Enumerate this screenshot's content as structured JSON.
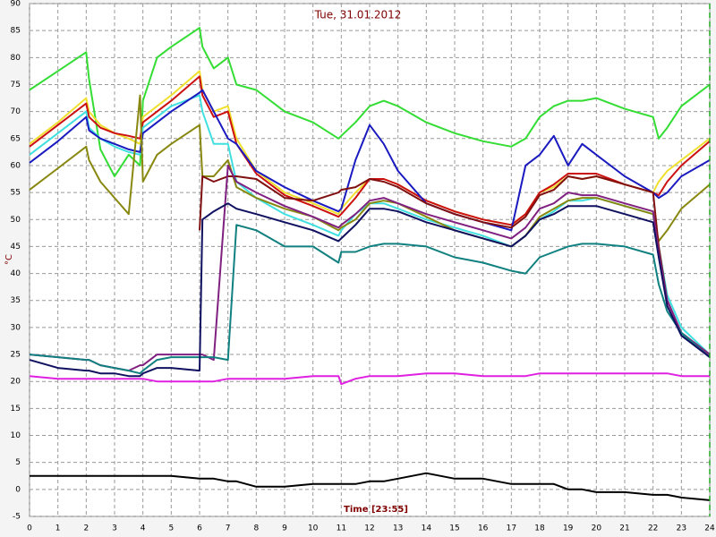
{
  "chart_data": {
    "type": "line",
    "title": "Tue, 31.01.2012",
    "x_label": "Time [23:55]",
    "y_label": "°C",
    "xlim": [
      0,
      24
    ],
    "ylim": [
      -5,
      90
    ],
    "xticks": [
      0,
      1,
      2,
      3,
      4,
      5,
      6,
      7,
      8,
      9,
      10,
      11,
      12,
      13,
      14,
      15,
      16,
      17,
      18,
      19,
      20,
      21,
      22,
      23,
      24
    ],
    "yticks": [
      -5,
      0,
      5,
      10,
      15,
      20,
      25,
      30,
      35,
      40,
      45,
      50,
      55,
      60,
      65,
      70,
      75,
      80,
      85,
      90
    ],
    "grid": true,
    "x": [
      0,
      1,
      2,
      2.1,
      2.5,
      3,
      3.5,
      3.9,
      4,
      4.5,
      5,
      6,
      6.1,
      6.5,
      7,
      7.3,
      8,
      9,
      10,
      10.9,
      11,
      11.5,
      12,
      12.5,
      13,
      14,
      15,
      16,
      17,
      17.5,
      18,
      18.5,
      19,
      19.5,
      20,
      21,
      22,
      22.2,
      22.5,
      23,
      24
    ],
    "series": [
      {
        "color": "#33dd33",
        "values": [
          74,
          77.5,
          81,
          76,
          63,
          58,
          62,
          60,
          72,
          80,
          82,
          85.5,
          82,
          78,
          80,
          75,
          74,
          70,
          68,
          65,
          65.5,
          68,
          71,
          72,
          71,
          68,
          66,
          64.5,
          63.5,
          65,
          69,
          71,
          72,
          72,
          72.5,
          70.5,
          69,
          65,
          67,
          71,
          75
        ]
      },
      {
        "color": "#f0e030",
        "values": [
          64,
          68,
          72.5,
          70,
          67.5,
          66,
          65,
          64,
          69,
          71,
          73,
          77.5,
          74,
          70,
          71,
          65,
          59,
          55,
          53,
          51,
          52,
          55,
          57.5,
          57.5,
          56.5,
          53.5,
          51.5,
          50,
          49,
          51,
          55,
          56,
          58,
          57.5,
          58,
          56.5,
          55,
          57,
          59,
          61,
          65
        ]
      },
      {
        "color": "#cc1010",
        "values": [
          63.5,
          67.5,
          71.5,
          69,
          67,
          66,
          65.5,
          65,
          68,
          70,
          72,
          76.5,
          73,
          69,
          70,
          64,
          58.5,
          54.5,
          52.5,
          50.5,
          51,
          54,
          57.5,
          57.5,
          56.5,
          53.5,
          51.5,
          50,
          49,
          51,
          55,
          56.5,
          58.5,
          58.5,
          58.5,
          56.5,
          55,
          54.5,
          57,
          60,
          64.5
        ]
      },
      {
        "color": "#40e0e0",
        "values": [
          62,
          66,
          70,
          67,
          65,
          63.5,
          62.5,
          62,
          67,
          69,
          71,
          73,
          70,
          64,
          64,
          57,
          54,
          51,
          49,
          47,
          48,
          51,
          53,
          53,
          52,
          50,
          48.5,
          47,
          45,
          47,
          50,
          51.5,
          53.5,
          53.5,
          54,
          52.5,
          51,
          45,
          36,
          30,
          25
        ]
      },
      {
        "color": "#1a1ac0",
        "values": [
          60.5,
          64.5,
          69,
          66.5,
          65,
          64,
          63,
          62.5,
          66,
          68,
          70,
          73.5,
          74,
          70,
          65,
          64,
          59,
          56,
          53.5,
          51.5,
          52,
          61,
          67.5,
          64,
          59,
          53,
          51,
          49.5,
          48,
          60,
          62,
          65.5,
          60,
          64,
          62,
          58,
          55,
          54,
          55,
          58,
          61
        ]
      },
      {
        "color": "#888810",
        "values": [
          55.5,
          59.5,
          63.5,
          61,
          57,
          54,
          51,
          73,
          57,
          62,
          64,
          67.5,
          58,
          58,
          61,
          56,
          54,
          52,
          50.5,
          48,
          48.5,
          50,
          53,
          53.5,
          53,
          50.5,
          48,
          46.5,
          45,
          47,
          50.5,
          52,
          53.5,
          54,
          54,
          52.5,
          51,
          46,
          48,
          52,
          56.5
        ]
      },
      {
        "color": "#801010",
        "values": [
          null,
          null,
          null,
          null,
          null,
          null,
          null,
          null,
          null,
          null,
          null,
          48,
          58,
          57,
          58,
          58,
          57.5,
          54,
          53.5,
          55,
          55.5,
          56,
          57.5,
          57,
          56,
          53,
          51,
          49.5,
          48.5,
          50.5,
          54.5,
          55.5,
          58,
          57.5,
          58,
          56.5,
          55,
          45,
          35,
          29,
          25
        ]
      },
      {
        "color": "#802080",
        "values": [
          25,
          24.5,
          24,
          24,
          23,
          22.5,
          22,
          23,
          23,
          25,
          25,
          25,
          25,
          24,
          60,
          57,
          55,
          52.5,
          50.5,
          48.5,
          49,
          51,
          53.5,
          54,
          53,
          51,
          49.5,
          48,
          46.5,
          48.5,
          52,
          53,
          55,
          54.5,
          54.5,
          53,
          51.5,
          44,
          35,
          29,
          25
        ]
      },
      {
        "color": "#108080",
        "values": [
          25,
          24.5,
          24,
          24,
          23,
          22.5,
          22,
          21.5,
          22,
          24,
          24.5,
          24.5,
          24.5,
          24.5,
          24,
          49,
          48,
          45,
          45,
          42,
          44,
          44,
          45,
          45.5,
          45.5,
          45,
          43,
          42,
          40.5,
          40,
          43,
          44,
          45,
          45.5,
          45.5,
          45,
          43.5,
          38,
          33,
          29,
          24.5
        ]
      },
      {
        "color": "#101060",
        "values": [
          24,
          22.5,
          22,
          22,
          21.5,
          21.5,
          21,
          21,
          21.5,
          22.5,
          22.5,
          22,
          50,
          51.5,
          53,
          52,
          51,
          49.5,
          48,
          46,
          46.5,
          49,
          52,
          52,
          51.5,
          49.5,
          48,
          46.5,
          45,
          47,
          50,
          51,
          52.5,
          52.5,
          52.5,
          51,
          49.5,
          43,
          34,
          28.5,
          24.5
        ]
      },
      {
        "color": "#e020e0",
        "values": [
          21,
          20.5,
          20.5,
          20.5,
          20.5,
          20.5,
          20.5,
          20.5,
          20.5,
          20,
          20,
          20,
          20,
          20,
          20.5,
          20.5,
          20.5,
          20.5,
          21,
          21,
          19.5,
          20.5,
          21,
          21,
          21,
          21.5,
          21.5,
          21,
          21,
          21,
          21.5,
          21.5,
          21.5,
          21.5,
          21.5,
          21.5,
          21.5,
          21.5,
          21.5,
          21,
          21
        ]
      },
      {
        "color": "#000000",
        "values": [
          2.5,
          2.5,
          2.5,
          2.5,
          2.5,
          2.5,
          2.5,
          2.5,
          2.5,
          2.5,
          2.5,
          2,
          2,
          2,
          1.5,
          1.5,
          0.5,
          0.5,
          1,
          1,
          1,
          1,
          1.5,
          1.5,
          2,
          3,
          2,
          2,
          1,
          1,
          1,
          1,
          0,
          0,
          -0.5,
          -0.5,
          -1,
          -1,
          -1,
          -1.5,
          -2
        ]
      }
    ]
  }
}
